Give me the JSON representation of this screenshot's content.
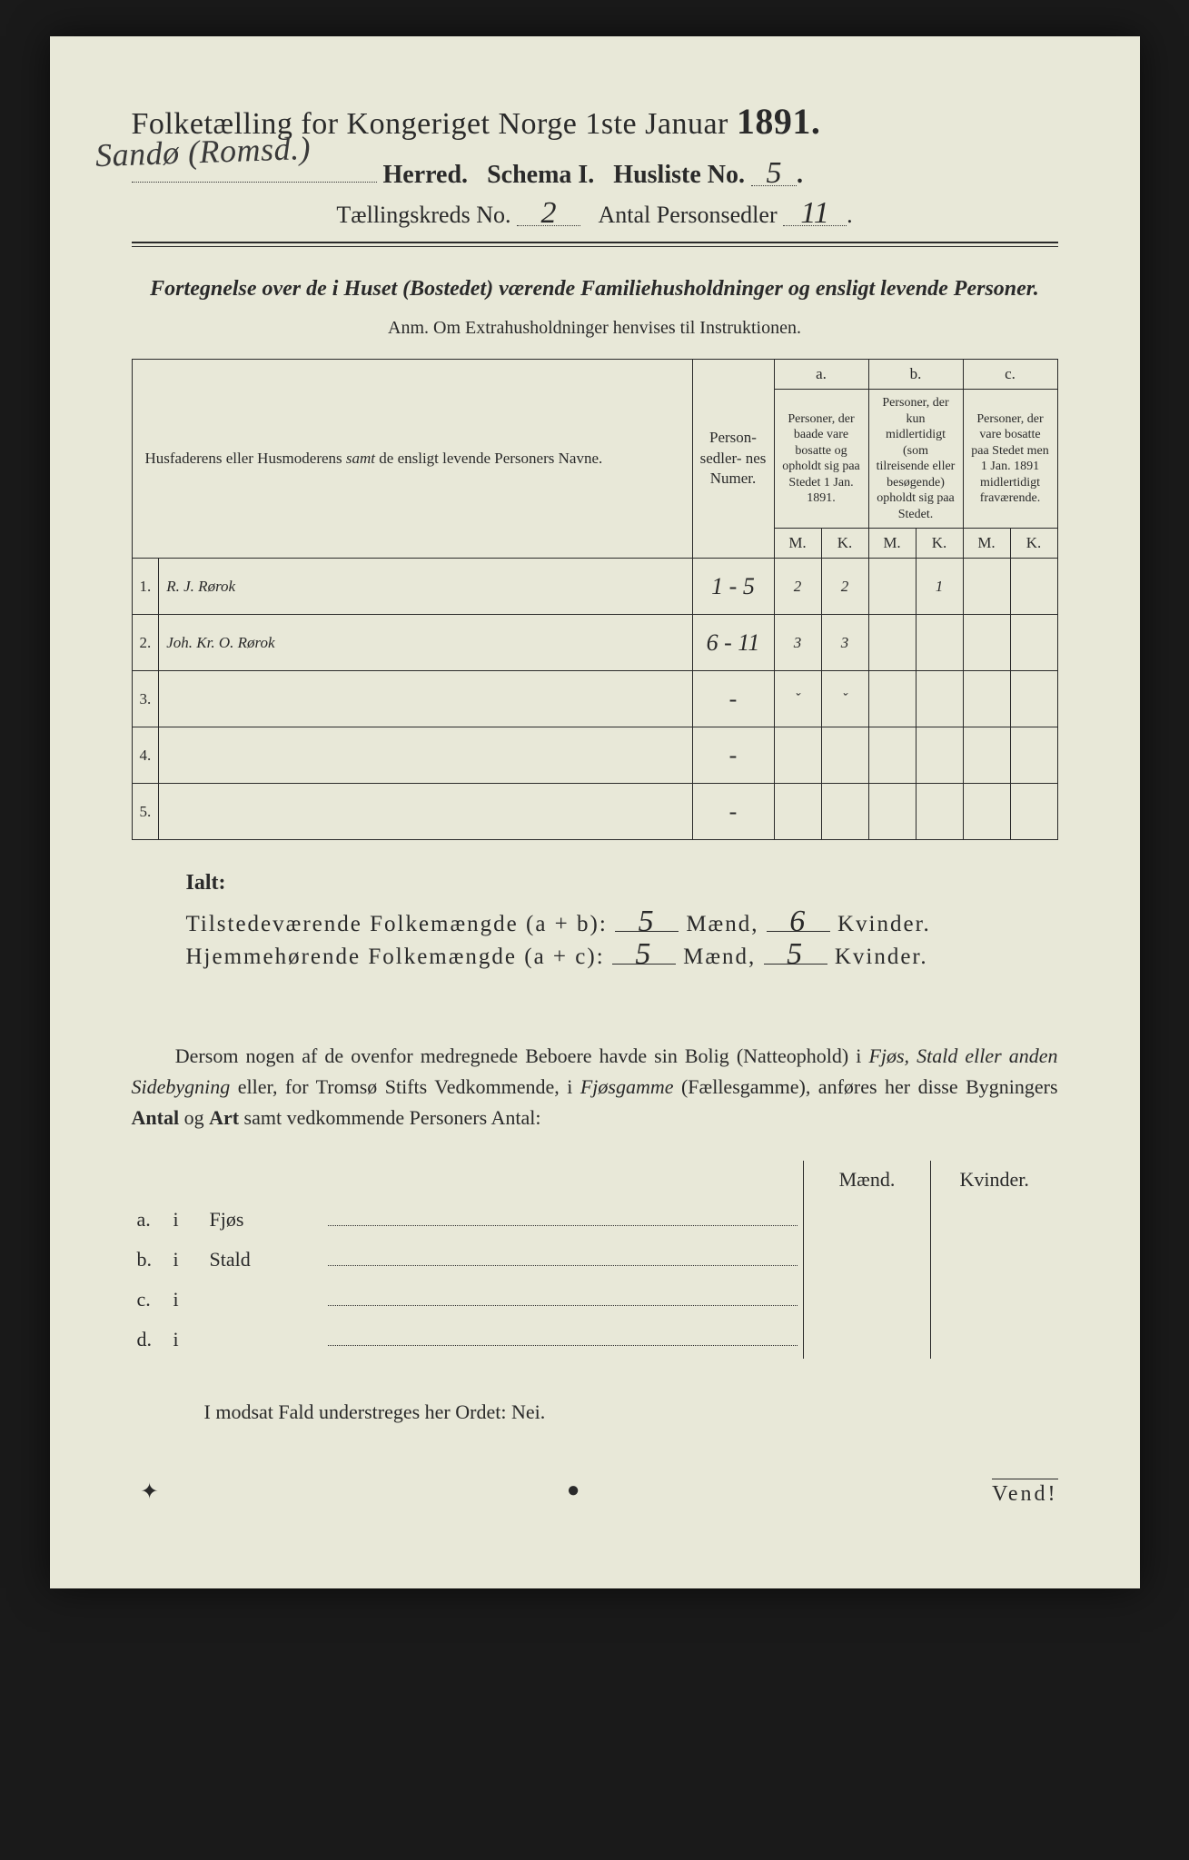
{
  "header": {
    "title_prefix": "Folketælling for Kongeriget Norge 1ste Januar",
    "year": "1891.",
    "herred_handwritten": "Sandø (Romsd.)",
    "herred_label": "Herred.",
    "schema_label": "Schema I.",
    "husliste_label": "Husliste No.",
    "husliste_no": "5",
    "kreds_label_pre": "Tællingskreds No.",
    "kreds_no": "2",
    "personsedler_label": "Antal Personsedler",
    "personsedler_no": "11"
  },
  "fort": {
    "heading": "Fortegnelse over de i Huset (Bostedet) værende Familiehusholdninger og ensligt levende Personer.",
    "anm": "Anm.  Om Extrahusholdninger henvises til Instruktionen."
  },
  "table": {
    "col1": "Husfaderens eller Husmoderens samt de ensligt levende Personers Navne.",
    "col2": "Person-\nsedler-\nnes\nNumer.",
    "a_label": "a.",
    "a_text": "Personer, der baade vare bosatte og opholdt sig paa Stedet 1 Jan. 1891.",
    "b_label": "b.",
    "b_text": "Personer, der kun midlertidigt (som tilreisende eller besøgende) opholdt sig paa Stedet.",
    "c_label": "c.",
    "c_text": "Personer, der vare bosatte paa Stedet men 1 Jan. 1891 midlertidigt fraværende.",
    "M": "M.",
    "K": "K.",
    "rows": [
      {
        "n": "1.",
        "name": "R. J. Rørok",
        "numer": "1 - 5",
        "aM": "2",
        "aK": "2",
        "bM": "",
        "bK": "1",
        "cM": "",
        "cK": ""
      },
      {
        "n": "2.",
        "name": "Joh. Kr. O. Rørok",
        "numer": "6 - 11",
        "aM": "3",
        "aK": "3",
        "bM": "",
        "bK": "",
        "cM": "",
        "cK": ""
      },
      {
        "n": "3.",
        "name": "",
        "numer": "-",
        "aM": "ˇ",
        "aK": "ˇ",
        "bM": "",
        "bK": "",
        "cM": "",
        "cK": ""
      },
      {
        "n": "4.",
        "name": "",
        "numer": "-",
        "aM": "",
        "aK": "",
        "bM": "",
        "bK": "",
        "cM": "",
        "cK": ""
      },
      {
        "n": "5.",
        "name": "",
        "numer": "-",
        "aM": "",
        "aK": "",
        "bM": "",
        "bK": "",
        "cM": "",
        "cK": ""
      }
    ]
  },
  "totals": {
    "ialt": "Ialt:",
    "line1_label": "Tilstedeværende Folkemængde (a + b):",
    "line1_m": "5",
    "line1_k": "6",
    "line2_label": "Hjemmehørende Folkemængde (a + c):",
    "line2_m": "5",
    "line2_k": "5",
    "maend": "Mænd,",
    "kvinder": "Kvinder."
  },
  "dersom_text": "Dersom nogen af de ovenfor medregnede Beboere havde sin Bolig (Natteophold) i Fjøs, Stald eller anden Sidebygning eller, for Tromsø Stifts Vedkommende, i Fjøsgamme (Fællesgamme), anføres her disse Bygningers Antal og Art samt vedkommende Personers Antal:",
  "side": {
    "maend": "Mænd.",
    "kvinder": "Kvinder.",
    "rows": [
      {
        "l": "a.",
        "i": "i",
        "name": "Fjøs"
      },
      {
        "l": "b.",
        "i": "i",
        "name": "Stald"
      },
      {
        "l": "c.",
        "i": "i",
        "name": ""
      },
      {
        "l": "d.",
        "i": "i",
        "name": ""
      }
    ]
  },
  "modsat": "I modsat Fald understreges her Ordet: Nei.",
  "vend": "Vend!",
  "colors": {
    "page_bg": "#e8e8d8",
    "outer_bg": "#1a1a1a",
    "ink": "#2a2a2a",
    "handwriting": "#3a3a3a"
  }
}
